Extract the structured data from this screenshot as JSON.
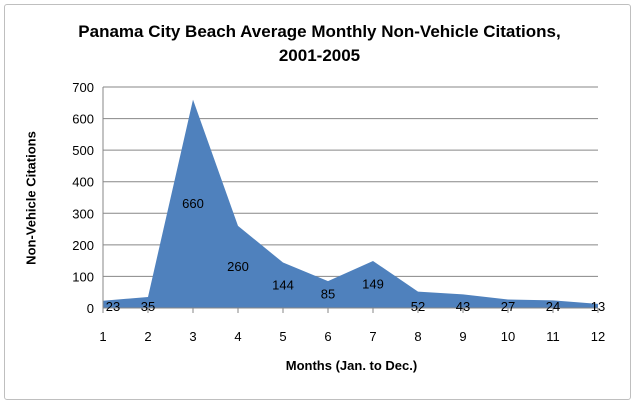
{
  "chart_data": {
    "type": "area",
    "title_line1": "Panama City Beach Average Monthly Non-Vehicle Citations,",
    "title_line2": "2001-2005",
    "xlabel": "Months (Jan. to Dec.)",
    "ylabel": "Non-Vehicle Citations",
    "x": [
      1,
      2,
      3,
      4,
      5,
      6,
      7,
      8,
      9,
      10,
      11,
      12
    ],
    "values": [
      23,
      35,
      660,
      260,
      144,
      85,
      149,
      52,
      43,
      27,
      24,
      13
    ],
    "ylim": [
      0,
      700
    ],
    "yticks": [
      0,
      100,
      200,
      300,
      400,
      500,
      600,
      700
    ],
    "grid": true,
    "fill_color": "#4f81bd"
  }
}
